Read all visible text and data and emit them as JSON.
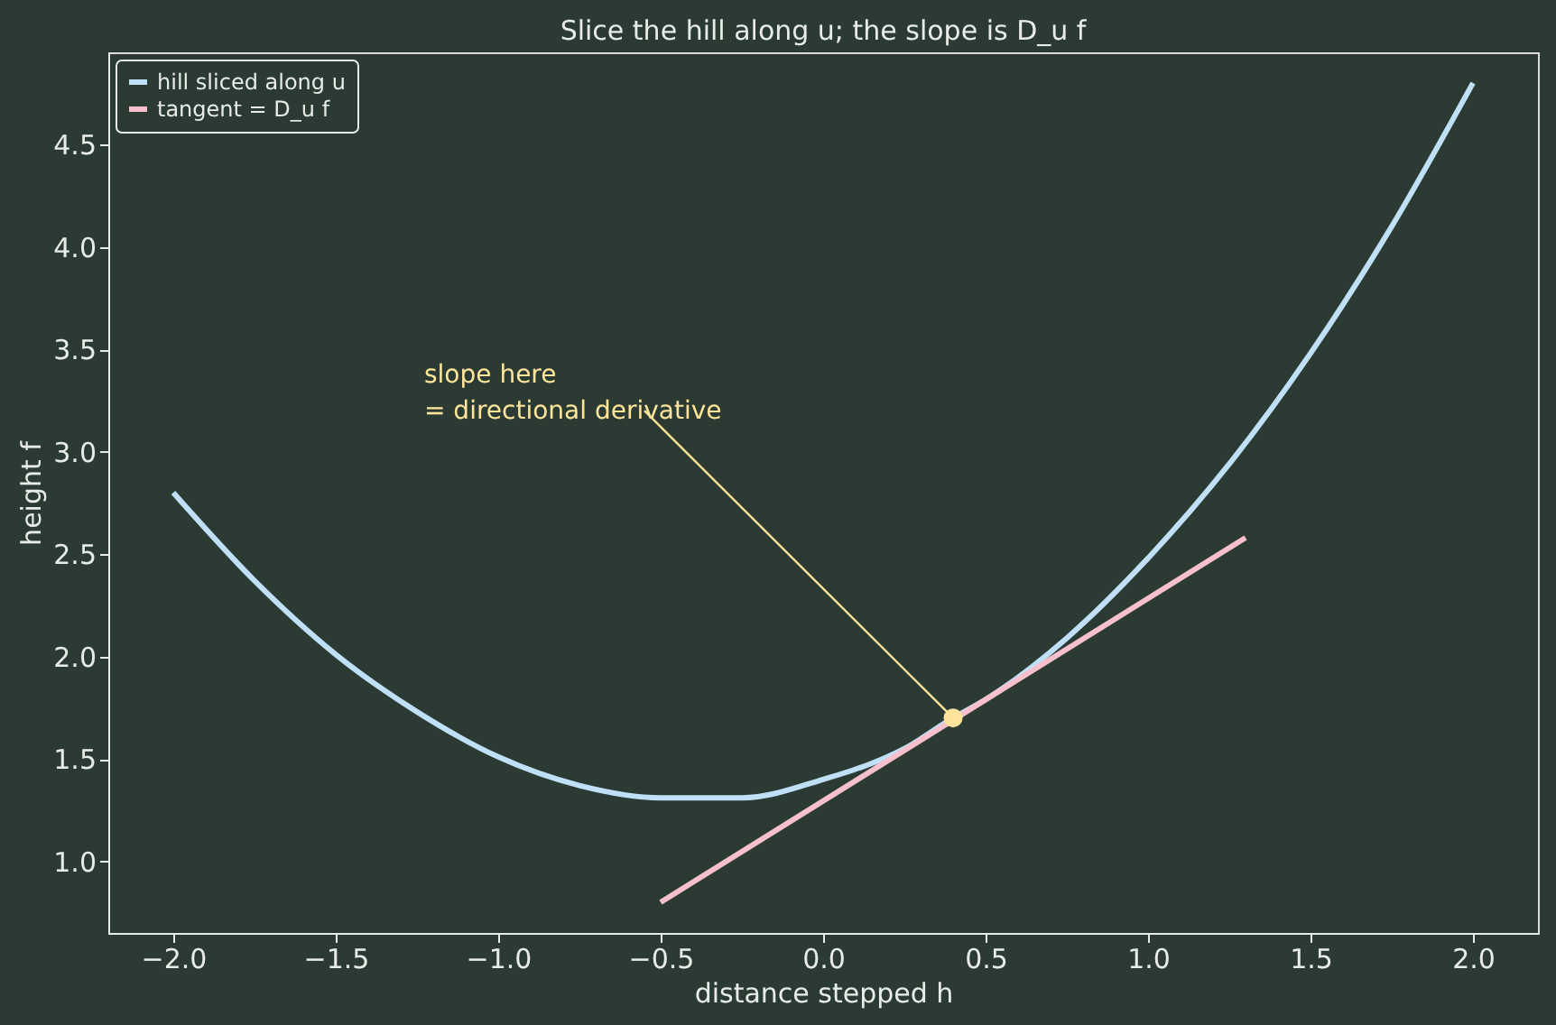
{
  "chart_data": {
    "type": "line",
    "title": "Slice the hill along u; the slope is D_u f",
    "xlabel": "distance stepped h",
    "ylabel": "height f",
    "series": [
      {
        "name": "hill sliced along u",
        "color": "#bfe0f7",
        "x": [
          -2,
          -1.75,
          -1.5,
          -1.25,
          -1,
          -0.75,
          -0.5,
          -0.25,
          0,
          0.25,
          0.4,
          0.5,
          0.75,
          1,
          1.25,
          1.5,
          1.75,
          2
        ],
        "values": [
          2.8,
          2.37,
          2.01,
          1.73,
          1.51,
          1.37,
          1.31,
          1.31,
          1.4,
          1.55,
          1.7,
          1.79,
          2.09,
          2.48,
          2.94,
          3.48,
          4.1,
          4.8
        ]
      },
      {
        "name": "tangent = D_u f",
        "color": "#f7c0cc",
        "x": [
          -0.5,
          1.3
        ],
        "values": [
          0.8,
          2.58
        ]
      },
      {
        "type": "scatter",
        "marker": "circle",
        "color": "#fde49a",
        "x": [
          0.4
        ],
        "values": [
          1.7
        ]
      }
    ],
    "annotations": [
      {
        "text": "slope here\n= directional derivative",
        "x": 0.4,
        "y": 1.7
      }
    ],
    "xlim": [
      -2.2,
      2.2
    ],
    "ylim": [
      0.65,
      4.95
    ],
    "xticks": [
      {
        "value": -2,
        "label": "−2.0"
      },
      {
        "value": -1.5,
        "label": "−1.5"
      },
      {
        "value": -1,
        "label": "−1.0"
      },
      {
        "value": -0.5,
        "label": "−0.5"
      },
      {
        "value": 0,
        "label": "0.0"
      },
      {
        "value": 0.5,
        "label": "0.5"
      },
      {
        "value": 1,
        "label": "1.0"
      },
      {
        "value": 1.5,
        "label": "1.5"
      },
      {
        "value": 2,
        "label": "2.0"
      }
    ],
    "yticks": [
      {
        "value": 1,
        "label": "1.0"
      },
      {
        "value": 1.5,
        "label": "1.5"
      },
      {
        "value": 2,
        "label": "2.0"
      },
      {
        "value": 2.5,
        "label": "2.5"
      },
      {
        "value": 3,
        "label": "3.0"
      },
      {
        "value": 3.5,
        "label": "3.5"
      },
      {
        "value": 4,
        "label": "4.0"
      },
      {
        "value": 4.5,
        "label": "4.5"
      }
    ],
    "grid": false,
    "legend": "top left",
    "line_style": "solid"
  }
}
